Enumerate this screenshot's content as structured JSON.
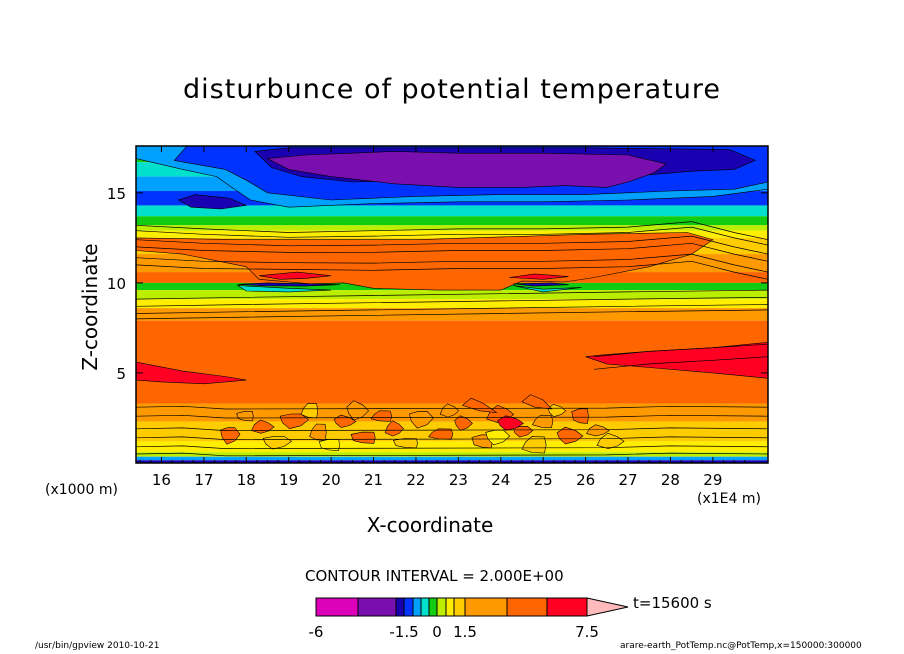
{
  "chart_data": {
    "type": "heatmap",
    "title": "disturbunce of potential temperature",
    "xlabel": "X-coordinate",
    "ylabel": "Z-coordinate",
    "x_unit_left": "(x1000 m)",
    "x_unit_right": "(x1E4 m)",
    "xlim": [
      15.4,
      30.3
    ],
    "ylim": [
      0,
      17.6
    ],
    "x_ticks": [
      "16",
      "17",
      "18",
      "19",
      "20",
      "21",
      "22",
      "23",
      "24",
      "25",
      "26",
      "27",
      "28",
      "29"
    ],
    "y_ticks": [
      "5",
      "10",
      "15"
    ],
    "contour_interval": "CONTOUR INTERVAL = 2.000E+00",
    "time_label": "t=15600 s",
    "colorbar": {
      "tick_labels": [
        "-6",
        "-1.5",
        "0",
        "1.5",
        "7.5"
      ],
      "levels": [
        {
          "color": "#dd00bb"
        },
        {
          "color": "#7a0fb0"
        },
        {
          "color": "#1a00b0"
        },
        {
          "color": "#0033ff"
        },
        {
          "color": "#00a0ff"
        },
        {
          "color": "#00e0cc"
        },
        {
          "color": "#11cc11"
        },
        {
          "color": "#bbee00"
        },
        {
          "color": "#ffee00"
        },
        {
          "color": "#ffcc00"
        },
        {
          "color": "#ff9900"
        },
        {
          "color": "#ff6600"
        },
        {
          "color": "#ff0022"
        },
        {
          "color": "#ff7070"
        },
        {
          "color": "#ffbbbb"
        }
      ]
    }
  },
  "footer": {
    "left": "/usr/bin/gpview   2010-10-21",
    "right": "arare-earth_PotTemp.nc@PotTemp,x=150000:300000"
  }
}
